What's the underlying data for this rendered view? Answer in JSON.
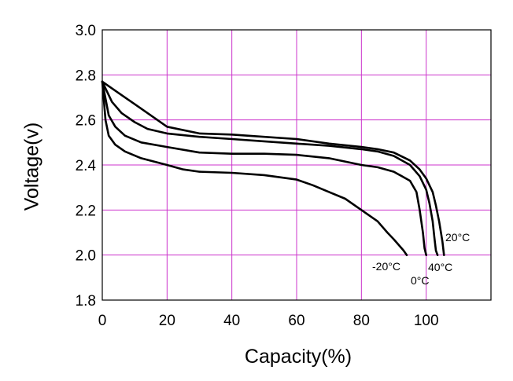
{
  "chart_data": {
    "type": "line",
    "title": "",
    "xlabel": "Capacity(%)",
    "ylabel": "Voltage(v)",
    "xlim": [
      0,
      120
    ],
    "ylim": [
      1.8,
      3.0
    ],
    "xticks": [
      "0",
      "20",
      "40",
      "60",
      "80",
      "100"
    ],
    "yticks": [
      "1.8",
      "2.0",
      "2.2",
      "2.4",
      "2.6",
      "2.8",
      "3.0"
    ],
    "grid": true,
    "colors": {
      "grid": "#cc33cc",
      "curve": "#000000"
    },
    "series": [
      {
        "name": "20°C",
        "x": [
          0,
          5,
          10,
          15,
          20,
          30,
          40,
          50,
          60,
          70,
          80,
          85,
          90,
          95,
          98,
          100,
          102,
          103,
          104,
          105,
          105.5
        ],
        "y": [
          2.77,
          2.72,
          2.67,
          2.62,
          2.57,
          2.54,
          2.535,
          2.525,
          2.515,
          2.495,
          2.48,
          2.47,
          2.455,
          2.42,
          2.38,
          2.34,
          2.28,
          2.22,
          2.15,
          2.06,
          2.0
        ]
      },
      {
        "name": "40°C",
        "x": [
          0,
          3,
          6,
          10,
          14,
          20,
          30,
          40,
          50,
          60,
          70,
          80,
          85,
          90,
          95,
          98,
          100,
          101,
          102,
          102.5,
          103,
          103.5
        ],
        "y": [
          2.77,
          2.68,
          2.63,
          2.59,
          2.56,
          2.54,
          2.525,
          2.515,
          2.505,
          2.495,
          2.485,
          2.47,
          2.46,
          2.44,
          2.4,
          2.35,
          2.29,
          2.23,
          2.15,
          2.08,
          2.02,
          2.0
        ]
      },
      {
        "name": "0°C",
        "x": [
          0,
          2,
          4,
          7,
          12,
          20,
          30,
          40,
          50,
          60,
          70,
          80,
          85,
          90,
          95,
          97,
          98,
          99,
          99.5,
          100
        ],
        "y": [
          2.77,
          2.62,
          2.57,
          2.53,
          2.5,
          2.48,
          2.455,
          2.45,
          2.45,
          2.445,
          2.43,
          2.4,
          2.39,
          2.37,
          2.33,
          2.28,
          2.2,
          2.1,
          2.03,
          2.0
        ]
      },
      {
        "name": "-20°C",
        "x": [
          0,
          1,
          2,
          4,
          7,
          12,
          20,
          25,
          30,
          40,
          50,
          60,
          65,
          70,
          75,
          80,
          85,
          88,
          90,
          93,
          94
        ],
        "y": [
          2.77,
          2.6,
          2.53,
          2.49,
          2.46,
          2.43,
          2.4,
          2.38,
          2.37,
          2.365,
          2.355,
          2.335,
          2.31,
          2.28,
          2.25,
          2.2,
          2.15,
          2.1,
          2.07,
          2.02,
          2.0
        ]
      }
    ],
    "annotations": [
      "20°C",
      "40°C",
      "-20°C",
      "0°C"
    ]
  }
}
